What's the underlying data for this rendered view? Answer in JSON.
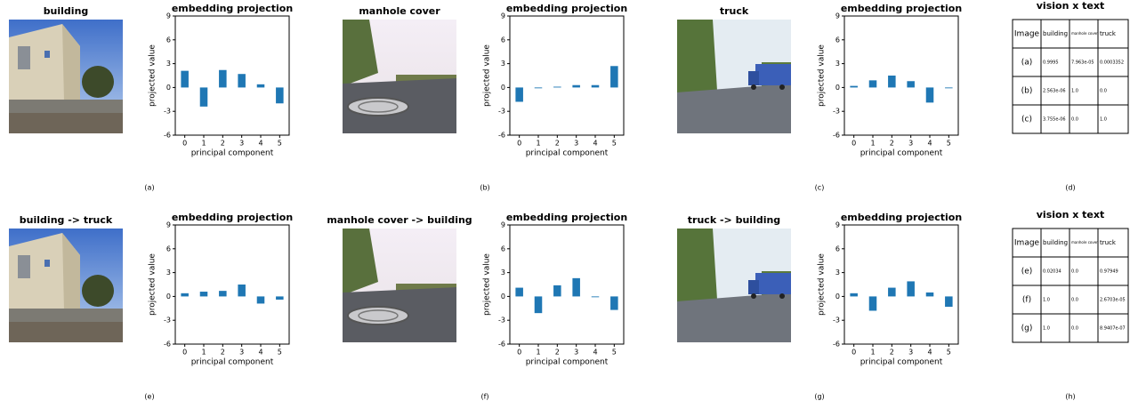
{
  "chart_data": [
    {
      "type": "bar",
      "title": "embedding projection",
      "xlabel": "principal component",
      "ylabel": "projected value",
      "categories": [
        "0",
        "1",
        "2",
        "3",
        "4",
        "5"
      ],
      "values": [
        2.1,
        -2.4,
        2.2,
        1.7,
        0.4,
        -2.0
      ],
      "color": "#1f77b4",
      "ylim": [
        -6,
        9
      ],
      "yticks": [
        -6,
        -3,
        0,
        3,
        6,
        9
      ]
    },
    {
      "type": "bar",
      "title": "embedding projection",
      "xlabel": "principal component",
      "ylabel": "projected value",
      "categories": [
        "0",
        "1",
        "2",
        "3",
        "4",
        "5"
      ],
      "values": [
        -1.8,
        -0.1,
        0.1,
        0.3,
        0.3,
        2.7
      ],
      "color": "#1f77b4",
      "ylim": [
        -6,
        9
      ],
      "yticks": [
        -6,
        -3,
        0,
        3,
        6,
        9
      ]
    },
    {
      "type": "bar",
      "title": "embedding projection",
      "xlabel": "principal component",
      "ylabel": "projected value",
      "categories": [
        "0",
        "1",
        "2",
        "3",
        "4",
        "5"
      ],
      "values": [
        0.2,
        0.9,
        1.5,
        0.8,
        -1.9,
        -0.1
      ],
      "color": "#1f77b4",
      "ylim": [
        -6,
        9
      ],
      "yticks": [
        -6,
        -3,
        0,
        3,
        6,
        9
      ]
    },
    {
      "type": "bar",
      "title": "embedding projection",
      "xlabel": "principal component",
      "ylabel": "projected value",
      "categories": [
        "0",
        "1",
        "2",
        "3",
        "4",
        "5"
      ],
      "values": [
        0.4,
        0.6,
        0.7,
        1.5,
        -0.9,
        -0.4
      ],
      "color": "#1f77b4",
      "ylim": [
        -6,
        9
      ],
      "yticks": [
        -6,
        -3,
        0,
        3,
        6,
        9
      ]
    },
    {
      "type": "bar",
      "title": "embedding projection",
      "xlabel": "principal component",
      "ylabel": "projected value",
      "categories": [
        "0",
        "1",
        "2",
        "3",
        "4",
        "5"
      ],
      "values": [
        1.1,
        -2.1,
        1.4,
        2.3,
        -0.1,
        -1.7
      ],
      "color": "#1f77b4",
      "ylim": [
        -6,
        9
      ],
      "yticks": [
        -6,
        -3,
        0,
        3,
        6,
        9
      ]
    },
    {
      "type": "bar",
      "title": "embedding projection",
      "xlabel": "principal component",
      "ylabel": "projected value",
      "categories": [
        "0",
        "1",
        "2",
        "3",
        "4",
        "5"
      ],
      "values": [
        0.4,
        -1.8,
        1.1,
        1.9,
        0.5,
        -1.3
      ],
      "color": "#1f77b4",
      "ylim": [
        -6,
        9
      ],
      "yticks": [
        -6,
        -3,
        0,
        3,
        6,
        9
      ]
    }
  ],
  "images": [
    {
      "title": "building"
    },
    {
      "title": "manhole cover"
    },
    {
      "title": "truck"
    },
    {
      "title": "building -> truck"
    },
    {
      "title": "manhole cover -> building"
    },
    {
      "title": "truck -> building"
    }
  ],
  "tables": [
    {
      "title": "vision x text",
      "header": [
        "Image",
        "building",
        "manhole cover",
        "truck"
      ],
      "rows": [
        [
          "(a)",
          "0.9995",
          "7.963e-05",
          "0.0003352"
        ],
        [
          "(b)",
          "2.563e-06",
          "1.0",
          "0.0"
        ],
        [
          "(c)",
          "3.755e-06",
          "0.0",
          "1.0"
        ]
      ]
    },
    {
      "title": "vision x text",
      "header": [
        "Image",
        "building",
        "manhole cover",
        "truck"
      ],
      "rows": [
        [
          "(e)",
          "0.02034",
          "0.0",
          "0.97949"
        ],
        [
          "(f)",
          "1.0",
          "0.0",
          "2.6703e-05"
        ],
        [
          "(g)",
          "1.0",
          "0.0",
          "8.9407e-07"
        ]
      ]
    }
  ],
  "panel_labels": [
    "(a)",
    "(b)",
    "(c)",
    "(d)",
    "(e)",
    "(f)",
    "(g)",
    "(h)"
  ]
}
